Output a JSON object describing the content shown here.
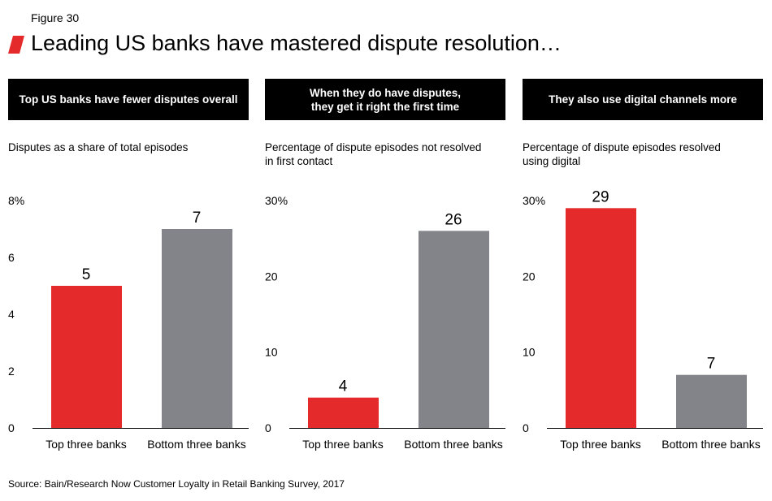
{
  "figure_label": "Figure 30",
  "title": "Leading US banks have mastered dispute resolution…",
  "source": "Source: Bain/Research Now Customer Loyalty in Retail Banking Survey, 2017",
  "colors": {
    "top": "#e42a2a",
    "bottom": "#838489",
    "header_bg": "#000000",
    "accent": "#e42a2a"
  },
  "panels": [
    {
      "header": "Top US banks have fewer disputes overall",
      "subtitle": "Disputes as a share of total episodes"
    },
    {
      "header": "When they do have disputes,\nthey get it right the first time",
      "subtitle": "Percentage of dispute episodes not resolved\nin first contact"
    },
    {
      "header": "They also use digital channels more",
      "subtitle": "Percentage of dispute episodes resolved\nusing digital"
    }
  ],
  "chart_data": [
    {
      "type": "bar",
      "categories": [
        "Top three banks",
        "Bottom three banks"
      ],
      "values": [
        5,
        7
      ],
      "ylim": [
        0,
        8
      ],
      "yticks": [
        0,
        2,
        4,
        6,
        8
      ],
      "ytick_labels": [
        "0",
        "2",
        "4",
        "6",
        "8%"
      ],
      "data_labels": [
        "5",
        "7"
      ]
    },
    {
      "type": "bar",
      "categories": [
        "Top three banks",
        "Bottom three banks"
      ],
      "values": [
        4,
        26
      ],
      "ylim": [
        0,
        30
      ],
      "yticks": [
        0,
        10,
        20,
        30
      ],
      "ytick_labels": [
        "0",
        "10",
        "20",
        "30%"
      ],
      "data_labels": [
        "4",
        "26"
      ]
    },
    {
      "type": "bar",
      "categories": [
        "Top three banks",
        "Bottom three banks"
      ],
      "values": [
        29,
        7
      ],
      "ylim": [
        0,
        30
      ],
      "yticks": [
        0,
        10,
        20,
        30
      ],
      "ytick_labels": [
        "0",
        "10",
        "20",
        "30%"
      ],
      "data_labels": [
        "29",
        "7"
      ]
    }
  ]
}
